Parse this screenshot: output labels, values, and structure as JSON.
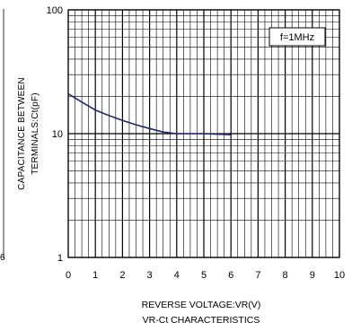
{
  "left_panel_fragment": {
    "tick_text": "6"
  },
  "chart_data": {
    "type": "line",
    "title": "VR-Ct CHARACTERISTICS",
    "xlabel": "REVERSE VOLTAGE:VR(V)",
    "ylabel": [
      "CAPACITANCE BETWEEN",
      "TERMINALS:Ct(pF)"
    ],
    "xlim": [
      0,
      10
    ],
    "ylim": [
      1,
      100
    ],
    "yscale": "log",
    "grid": true,
    "x_ticks": [
      "0",
      "1",
      "2",
      "3",
      "4",
      "5",
      "6",
      "7",
      "8",
      "9",
      "10"
    ],
    "y_ticks": [
      {
        "value": 1,
        "label": "1"
      },
      {
        "value": 10,
        "label": "10"
      },
      {
        "value": 100,
        "label": "100"
      }
    ],
    "legend": {
      "text": "f=1MHz",
      "placement": "top-right"
    },
    "series": [
      {
        "color": "#1f2a6b",
        "x": [
          0,
          0.5,
          1,
          1.5,
          2,
          2.5,
          3,
          3.5,
          4,
          4.5,
          5,
          5.5,
          6
        ],
        "y": [
          21,
          18,
          15.5,
          14,
          12.8,
          11.8,
          11,
          10.3,
          10,
          10,
          10,
          9.9,
          9.8
        ]
      }
    ]
  }
}
